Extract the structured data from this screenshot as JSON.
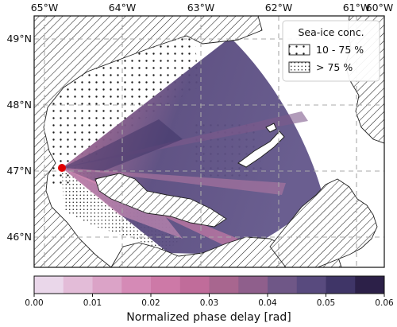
{
  "map": {
    "lon_labels": [
      "65°W",
      "64°W",
      "63°W",
      "62°W",
      "61°W",
      "60°W"
    ],
    "lat_labels": [
      "49°N",
      "48°N",
      "47°N",
      "46°N"
    ]
  },
  "legend": {
    "title": "Sea-ice conc.",
    "items": [
      {
        "label": "10 - 75 %",
        "pattern": "sparse-dots"
      },
      {
        "label": "> 75 %",
        "pattern": "dense-dots"
      }
    ]
  },
  "colorbar": {
    "label": "Normalized phase delay [rad]",
    "ticks": [
      "0.00",
      "0.01",
      "0.02",
      "0.03",
      "0.04",
      "0.05",
      "0.06"
    ],
    "colors": [
      "#ead7ea",
      "#e3bcd8",
      "#dba3c7",
      "#d58ab6",
      "#cd79a7",
      "#c06c9a",
      "#a8668f",
      "#8f5f8c",
      "#6f5787",
      "#584a7e",
      "#3f3567",
      "#2c2048"
    ]
  },
  "colors": {
    "wedge_main": "#5f5287",
    "wedge_dark": "#3f3567",
    "wedge_pink": "#c77aa5",
    "station": "#e00000"
  }
}
